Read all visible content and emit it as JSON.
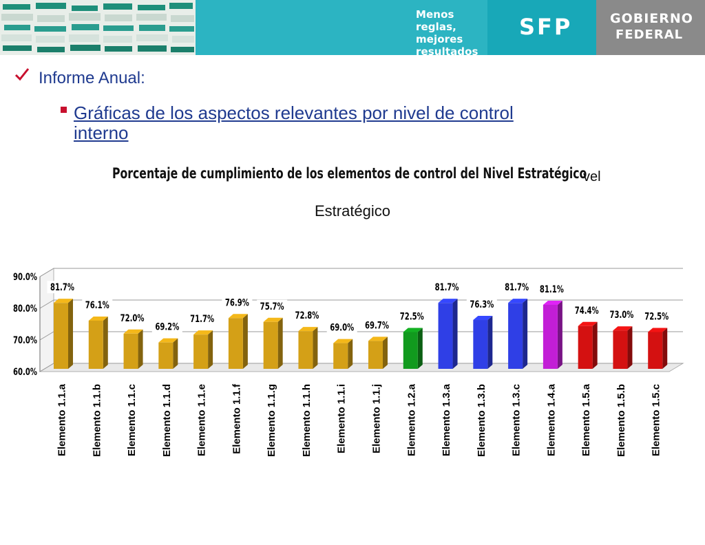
{
  "header": {
    "tagline": "Menos reglas, mejores resultados",
    "sfp": "SFP",
    "gobierno_line1": "GOBIERNO",
    "gobierno_line2": "FEDERAL",
    "colors": {
      "band": "#2cb4c2",
      "sfp": "#18a8b8",
      "gobierno": "#8a8a8a"
    }
  },
  "icons": {
    "check": "check-icon",
    "bullet": "square-bullet-icon"
  },
  "heading": "Informe Anual:",
  "subheading": "Gráficas de los aspectos relevantes por nivel de control interno",
  "chart_data": {
    "type": "bar",
    "title": "Porcentaje de cumplimiento de los elementos de control del Nivel Estratégico",
    "title_trailing_text": "vel",
    "title_line2": "Estratégico",
    "categories": [
      "Elemento 1.1.a",
      "Elemento 1.1.b",
      "Elemento 1.1.c",
      "Elemento 1.1.d",
      "Elemento 1.1.e",
      "Elemento 1.1.f",
      "Elemento 1.1.g",
      "Elemento 1.1.h",
      "Elemento 1.1.i",
      "Elemento 1.1.j",
      "Elemento 1.2.a",
      "Elemento 1.3.a",
      "Elemento 1.3.b",
      "Elemento 1.3.c",
      "Elemento 1.4.a",
      "Elemento 1.5.a",
      "Elemento 1.5.b",
      "Elemento 1.5.c"
    ],
    "values": [
      81.7,
      76.1,
      72.0,
      69.2,
      71.7,
      76.9,
      75.7,
      72.8,
      69.0,
      69.7,
      72.5,
      81.7,
      76.3,
      81.7,
      81.1,
      74.4,
      73.0,
      72.5
    ],
    "value_labels": [
      "81.7%",
      "76.1%",
      "72.0%",
      "69.2%",
      "71.7%",
      "76.9%",
      "75.7%",
      "72.8%",
      "69.0%",
      "69.7%",
      "72.5%",
      "81.7%",
      "76.3%",
      "81.7%",
      "81.1%",
      "74.4%",
      "73.0%",
      "72.5%"
    ],
    "colors": [
      "#d4a017",
      "#d4a017",
      "#d4a017",
      "#d4a017",
      "#d4a017",
      "#d4a017",
      "#d4a017",
      "#d4a017",
      "#d4a017",
      "#d4a017",
      "#119a1e",
      "#2f3fe6",
      "#2f3fe6",
      "#2f3fe6",
      "#c21ed6",
      "#d41111",
      "#d41111",
      "#d41111"
    ],
    "y_ticks": [
      "60.0%",
      "70.0%",
      "80.0%",
      "90.0%"
    ],
    "ylim": [
      60,
      90
    ],
    "grid": true,
    "legend": "none"
  }
}
